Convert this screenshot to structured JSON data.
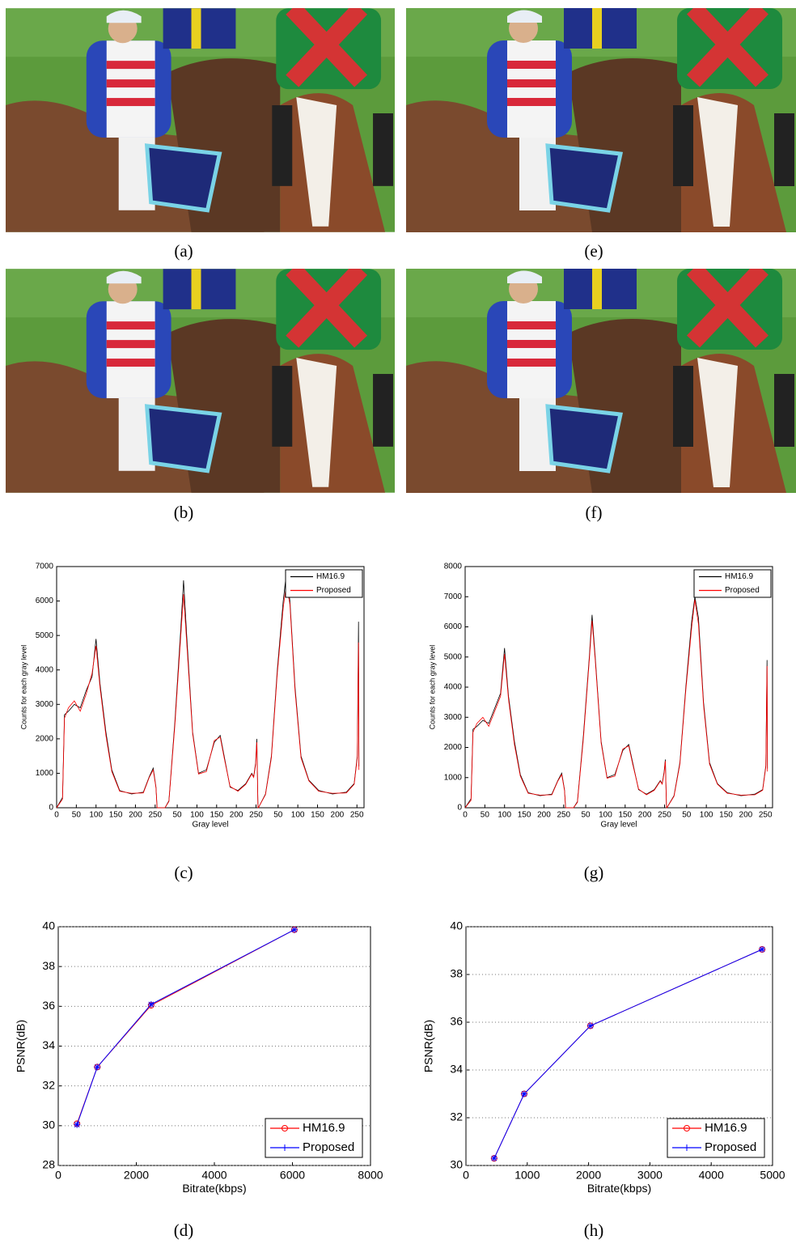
{
  "figure": {
    "captions": [
      "(a)",
      "(e)",
      "(b)",
      "(f)",
      "(c)",
      "(g)",
      "(d)",
      "(h)"
    ]
  },
  "chart_data": [
    {
      "type": "line",
      "xlabel": "Gray level",
      "ylabel": "Counts for each gray level",
      "x": [
        0,
        15,
        20,
        30,
        45,
        60,
        75,
        90,
        100,
        110,
        125,
        140,
        160,
        190,
        220,
        235,
        245,
        252,
        255,
        256,
        275,
        285,
        300,
        315,
        322,
        330,
        345,
        360,
        380,
        400,
        415,
        425,
        440,
        460,
        480,
        495,
        500,
        505,
        508,
        511,
        512,
        530,
        545,
        560,
        575,
        583,
        592,
        605,
        620,
        640,
        665,
        700,
        735,
        755,
        763,
        766,
        767
      ],
      "xlim": [
        0,
        780
      ],
      "xticks": [
        0,
        50,
        100,
        150,
        200,
        250,
        {
          "value": 306,
          "label": "50"
        },
        {
          "value": 356,
          "label": "100"
        },
        {
          "value": 406,
          "label": "150"
        },
        {
          "value": 456,
          "label": "200"
        },
        {
          "value": 506,
          "label": "250"
        },
        {
          "value": 562,
          "label": "50"
        },
        {
          "value": 612,
          "label": "100"
        },
        {
          "value": 662,
          "label": "150"
        },
        {
          "value": 712,
          "label": "200"
        },
        {
          "value": 762,
          "label": "250"
        }
      ],
      "ylim": [
        0,
        7000
      ],
      "yticks": [
        0,
        1000,
        2000,
        3000,
        4000,
        5000,
        6000,
        7000
      ],
      "legend": "upper right",
      "grid": false,
      "series": [
        {
          "name": "HM16.9",
          "color": "#000000",
          "values": [
            0,
            300,
            2700,
            2800,
            3000,
            2900,
            3400,
            3800,
            4900,
            3600,
            2200,
            1100,
            500,
            400,
            450,
            900,
            1150,
            600,
            0,
            0,
            0,
            200,
            2500,
            5200,
            6600,
            5000,
            2200,
            1000,
            1100,
            1900,
            2100,
            1500,
            600,
            500,
            700,
            1000,
            900,
            1300,
            2000,
            0,
            0,
            400,
            1500,
            4000,
            6000,
            6800,
            6000,
            3500,
            1500,
            800,
            500,
            400,
            450,
            700,
            1500,
            5400,
            1200
          ]
        },
        {
          "name": "Proposed",
          "color": "#ff0000",
          "values": [
            0,
            250,
            2600,
            2900,
            3100,
            2800,
            3300,
            3900,
            4700,
            3500,
            2100,
            1050,
            480,
            420,
            430,
            880,
            1100,
            580,
            0,
            0,
            0,
            180,
            2400,
            5000,
            6200,
            4800,
            2150,
            980,
            1050,
            1950,
            2050,
            1450,
            620,
            480,
            680,
            980,
            880,
            1250,
            1900,
            0,
            0,
            380,
            1450,
            3900,
            5800,
            6500,
            5900,
            3400,
            1450,
            780,
            480,
            420,
            430,
            680,
            1450,
            4800,
            1100
          ]
        }
      ]
    },
    {
      "type": "line",
      "xlabel": "Gray level",
      "ylabel": "Counts for each gray level",
      "x": [
        0,
        15,
        20,
        30,
        45,
        60,
        75,
        90,
        100,
        110,
        125,
        140,
        160,
        190,
        220,
        235,
        245,
        252,
        255,
        256,
        275,
        285,
        300,
        315,
        322,
        330,
        345,
        360,
        380,
        400,
        415,
        425,
        440,
        460,
        480,
        495,
        500,
        505,
        508,
        511,
        512,
        530,
        545,
        560,
        575,
        583,
        592,
        605,
        620,
        640,
        665,
        700,
        735,
        755,
        763,
        766,
        767
      ],
      "xlim": [
        0,
        780
      ],
      "xticks": [
        0,
        50,
        100,
        150,
        200,
        250,
        {
          "value": 306,
          "label": "50"
        },
        {
          "value": 356,
          "label": "100"
        },
        {
          "value": 406,
          "label": "150"
        },
        {
          "value": 456,
          "label": "200"
        },
        {
          "value": 506,
          "label": "250"
        },
        {
          "value": 562,
          "label": "50"
        },
        {
          "value": 612,
          "label": "100"
        },
        {
          "value": 662,
          "label": "150"
        },
        {
          "value": 712,
          "label": "200"
        },
        {
          "value": 762,
          "label": "250"
        }
      ],
      "ylim": [
        0,
        8000
      ],
      "yticks": [
        0,
        1000,
        2000,
        3000,
        4000,
        5000,
        6000,
        7000,
        8000
      ],
      "legend": "upper right",
      "grid": false,
      "series": [
        {
          "name": "HM16.9",
          "color": "#000000",
          "values": [
            0,
            300,
            2600,
            2700,
            2900,
            2800,
            3300,
            3800,
            5300,
            3700,
            2200,
            1100,
            500,
            400,
            450,
            900,
            1150,
            600,
            0,
            0,
            0,
            200,
            2400,
            5000,
            6400,
            5000,
            2200,
            1000,
            1100,
            1900,
            2100,
            1500,
            600,
            450,
            600,
            900,
            800,
            1200,
            1600,
            0,
            0,
            400,
            1500,
            4000,
            6200,
            7000,
            6300,
            3500,
            1500,
            800,
            500,
            400,
            450,
            600,
            1400,
            4900,
            1300
          ]
        },
        {
          "name": "Proposed",
          "color": "#ff0000",
          "values": [
            0,
            250,
            2500,
            2800,
            3000,
            2700,
            3200,
            3700,
            5100,
            3600,
            2100,
            1050,
            480,
            420,
            430,
            880,
            1100,
            580,
            0,
            0,
            0,
            180,
            2300,
            4900,
            6200,
            4900,
            2150,
            980,
            1050,
            1950,
            2050,
            1450,
            620,
            430,
            580,
            880,
            780,
            1150,
            1550,
            0,
            0,
            380,
            1450,
            3900,
            6000,
            6900,
            6100,
            3400,
            1450,
            780,
            480,
            420,
            430,
            580,
            1350,
            4700,
            1200
          ]
        }
      ]
    },
    {
      "type": "line",
      "xlabel": "Bitrate(kbps)",
      "ylabel": "PSNR(dB)",
      "x": [
        480,
        1000,
        2380,
        6050
      ],
      "xlim": [
        0,
        8000
      ],
      "xticks": [
        0,
        2000,
        4000,
        6000,
        8000
      ],
      "ylim": [
        28,
        40
      ],
      "yticks": [
        28,
        30,
        32,
        34,
        36,
        38,
        40
      ],
      "legend": "lower right",
      "grid": true,
      "series": [
        {
          "name": "HM16.9",
          "color": "#ff0000",
          "marker": "o",
          "values": [
            30.1,
            32.95,
            36.05,
            39.85
          ]
        },
        {
          "name": "Proposed",
          "color": "#0000ff",
          "marker": "*",
          "values": [
            30.05,
            32.95,
            36.1,
            39.85
          ]
        }
      ]
    },
    {
      "type": "line",
      "xlabel": "Bitrate(kbps)",
      "ylabel": "PSNR(dB)",
      "x": [
        460,
        950,
        2030,
        4830
      ],
      "xlim": [
        0,
        5000
      ],
      "xticks": [
        0,
        1000,
        2000,
        3000,
        4000,
        5000
      ],
      "ylim": [
        30,
        40
      ],
      "yticks": [
        30,
        32,
        34,
        36,
        38,
        40
      ],
      "legend": "lower right",
      "grid": true,
      "series": [
        {
          "name": "HM16.9",
          "color": "#ff0000",
          "marker": "o",
          "values": [
            30.3,
            33.0,
            35.85,
            39.05
          ]
        },
        {
          "name": "Proposed",
          "color": "#0000ff",
          "marker": "*",
          "values": [
            30.3,
            33.0,
            35.85,
            39.05
          ]
        }
      ]
    }
  ]
}
